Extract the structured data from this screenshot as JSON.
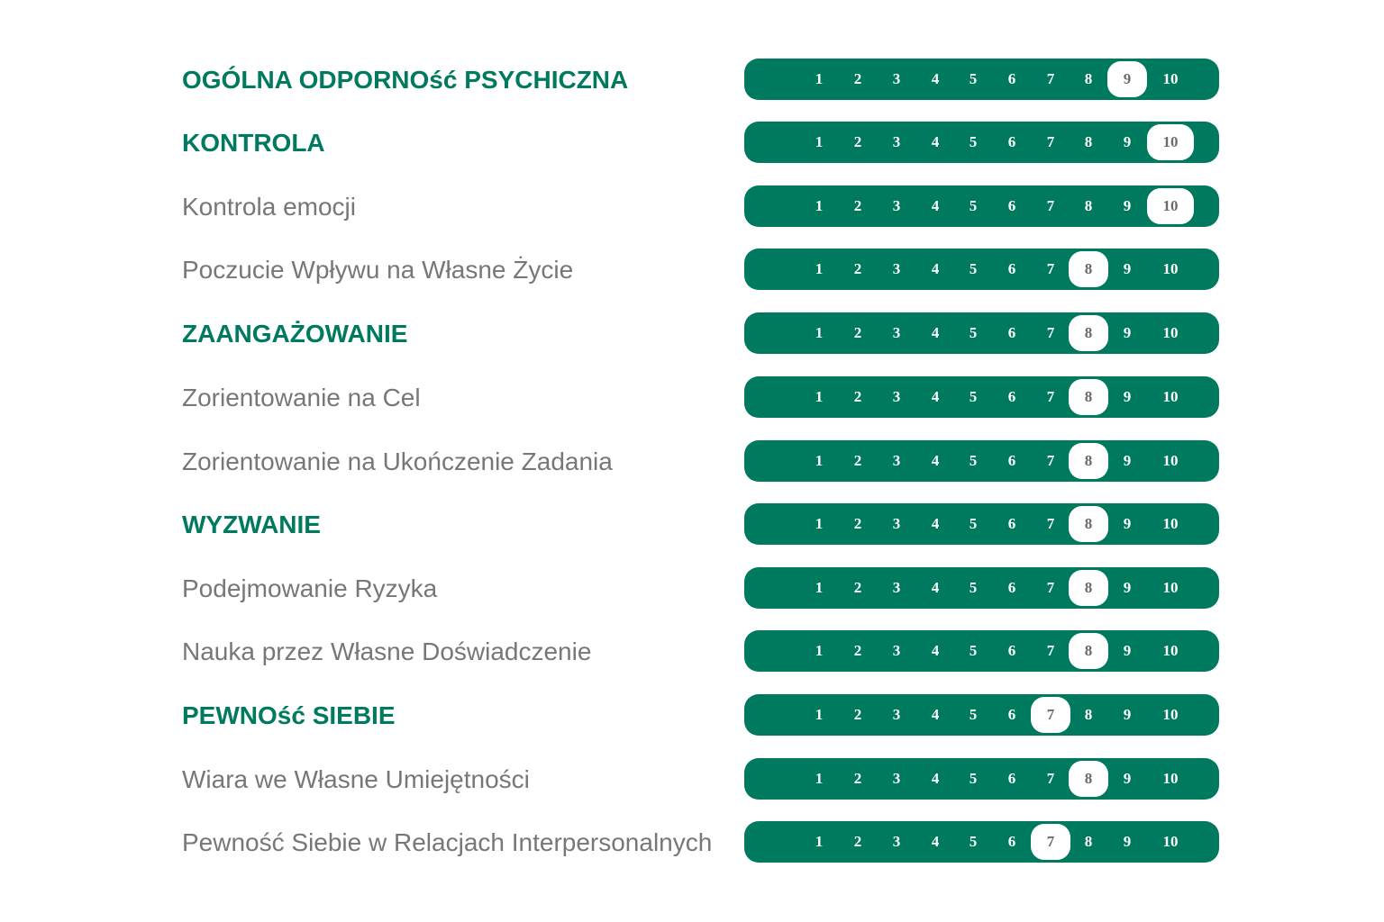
{
  "colors": {
    "accent": "#007a5e",
    "category_text": "#007a5e",
    "subscale_text": "#77777a",
    "selected_bg": "#ffffff"
  },
  "scale": [
    "1",
    "2",
    "3",
    "4",
    "5",
    "6",
    "7",
    "8",
    "9",
    "10"
  ],
  "rows": [
    {
      "label": "OGÓLNA ODPORNOść PSYCHICZNA",
      "type": "category",
      "score": 9
    },
    {
      "label": "KONTROLA",
      "type": "category",
      "score": 10
    },
    {
      "label": "Kontrola emocji",
      "type": "subscale",
      "score": 10
    },
    {
      "label": "Poczucie Wpływu na Własne Życie",
      "type": "subscale",
      "score": 8
    },
    {
      "label": "ZAANGAŻOWANIE",
      "type": "category",
      "score": 8
    },
    {
      "label": "Zorientowanie na Cel",
      "type": "subscale",
      "score": 8
    },
    {
      "label": "Zorientowanie na Ukończenie Zadania",
      "type": "subscale",
      "score": 8
    },
    {
      "label": "WYZWANIE",
      "type": "category",
      "score": 8
    },
    {
      "label": "Podejmowanie Ryzyka",
      "type": "subscale",
      "score": 8
    },
    {
      "label": "Nauka przez Własne Doświadczenie",
      "type": "subscale",
      "score": 8
    },
    {
      "label": "PEWNOść SIEBIE",
      "type": "category",
      "score": 7
    },
    {
      "label": "Wiara we Własne Umiejętności",
      "type": "subscale",
      "score": 8
    },
    {
      "label": "Pewność Siebie w Relacjach Interpersonalnych",
      "type": "subscale",
      "score": 7
    }
  ]
}
